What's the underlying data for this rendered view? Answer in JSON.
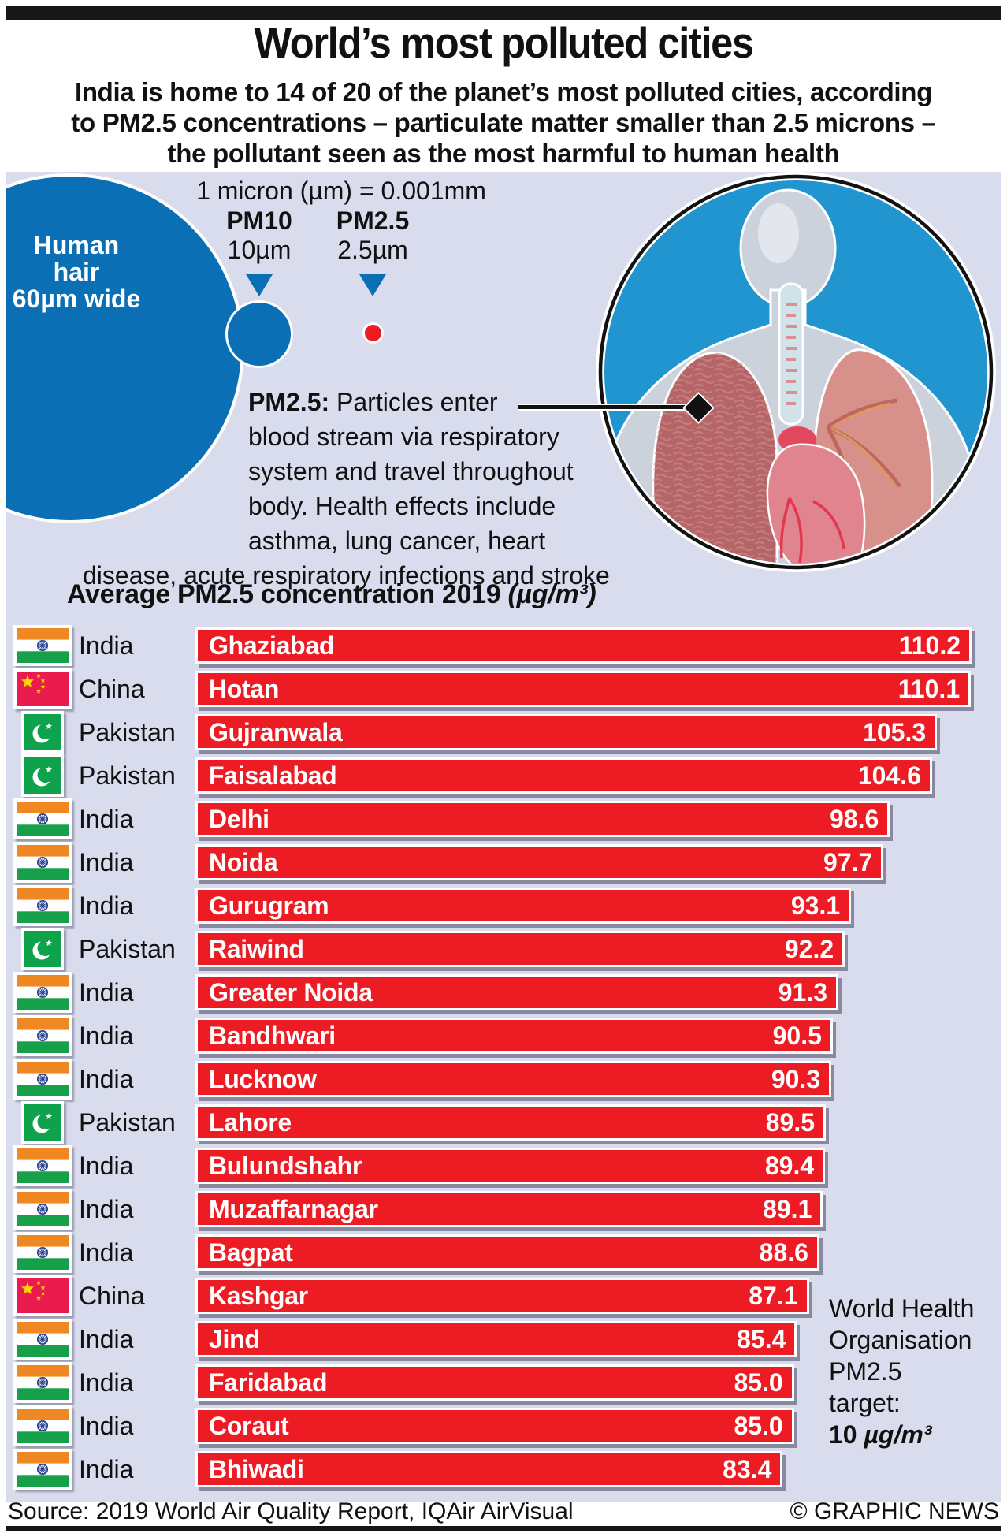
{
  "header": {
    "title": "World’s most polluted cities",
    "subtitle_lines": [
      "India is home to 14 of 20 of the planet’s most polluted cities, according",
      "to PM2.5 concentrations – particulate matter smaller than 2.5 microns –",
      "the pollutant seen as the most harmful to human health"
    ]
  },
  "micron_note": "1 micron (µm) = 0.001mm",
  "hair": {
    "label_lines": [
      "Human",
      "hair",
      "60µm wide"
    ]
  },
  "particles": [
    {
      "name": "PM10",
      "size": "10µm"
    },
    {
      "name": "PM2.5",
      "size": "2.5µm"
    }
  ],
  "pm25_note": {
    "label": "PM2.5:",
    "lines": [
      "Particles enter",
      "blood stream via respiratory",
      "system and travel throughout",
      "body. Health effects include",
      "asthma, lung cancer, heart",
      "disease, acute respiratory infections and stroke"
    ]
  },
  "chart_data": {
    "type": "bar",
    "title": "Average PM2.5 concentration 2019 (µg/m³)",
    "title_main": "Average PM2.5 concentration 2019",
    "title_unit": "(µg/m³)",
    "unit": "µg/m³",
    "xlim": [
      0,
      110.2
    ],
    "max_value": 110.2,
    "rows": [
      {
        "country": "India",
        "city": "Ghaziabad",
        "value": 110.2,
        "label": "110.2"
      },
      {
        "country": "China",
        "city": "Hotan",
        "value": 110.1,
        "label": "110.1"
      },
      {
        "country": "Pakistan",
        "city": "Gujranwala",
        "value": 105.3,
        "label": "105.3"
      },
      {
        "country": "Pakistan",
        "city": "Faisalabad",
        "value": 104.6,
        "label": "104.6"
      },
      {
        "country": "India",
        "city": "Delhi",
        "value": 98.6,
        "label": "98.6"
      },
      {
        "country": "India",
        "city": "Noida",
        "value": 97.7,
        "label": "97.7"
      },
      {
        "country": "India",
        "city": "Gurugram",
        "value": 93.1,
        "label": "93.1"
      },
      {
        "country": "Pakistan",
        "city": "Raiwind",
        "value": 92.2,
        "label": "92.2"
      },
      {
        "country": "India",
        "city": "Greater Noida",
        "value": 91.3,
        "label": "91.3"
      },
      {
        "country": "India",
        "city": "Bandhwari",
        "value": 90.5,
        "label": "90.5"
      },
      {
        "country": "India",
        "city": "Lucknow",
        "value": 90.3,
        "label": "90.3"
      },
      {
        "country": "Pakistan",
        "city": "Lahore",
        "value": 89.5,
        "label": "89.5"
      },
      {
        "country": "India",
        "city": "Bulundshahr",
        "value": 89.4,
        "label": "89.4"
      },
      {
        "country": "India",
        "city": "Muzaffarnagar",
        "value": 89.1,
        "label": "89.1"
      },
      {
        "country": "India",
        "city": "Bagpat",
        "value": 88.6,
        "label": "88.6"
      },
      {
        "country": "China",
        "city": "Kashgar",
        "value": 87.1,
        "label": "87.1"
      },
      {
        "country": "India",
        "city": "Jind",
        "value": 85.4,
        "label": "85.4"
      },
      {
        "country": "India",
        "city": "Faridabad",
        "value": 85.0,
        "label": "85.0"
      },
      {
        "country": "India",
        "city": "Coraut",
        "value": 85.0,
        "label": "85.0"
      },
      {
        "country": "India",
        "city": "Bhiwadi",
        "value": 83.4,
        "label": "83.4"
      }
    ]
  },
  "who_target": {
    "lines": [
      "World Health",
      "Organisation",
      "PM2.5",
      "target:"
    ],
    "value_num": "10",
    "value_unit": "µg/m³"
  },
  "footer": {
    "source": "Source: 2019 World Air Quality Report, IQAir AirVisual",
    "credit": "© GRAPHIC NEWS"
  },
  "colors": {
    "accent_blue": "#0b6fb6",
    "illustration_blue": "#2095cf",
    "bar_red": "#ed1c24",
    "panel_lavender": "#d9dcec",
    "china_flag_red": "#ea1b4e",
    "star_yellow": "#ffd200",
    "pakistan_green": "#0fa24c",
    "india_saffron": "#ef8722",
    "india_green": "#16a04a",
    "chakra_navy": "#27408b"
  }
}
